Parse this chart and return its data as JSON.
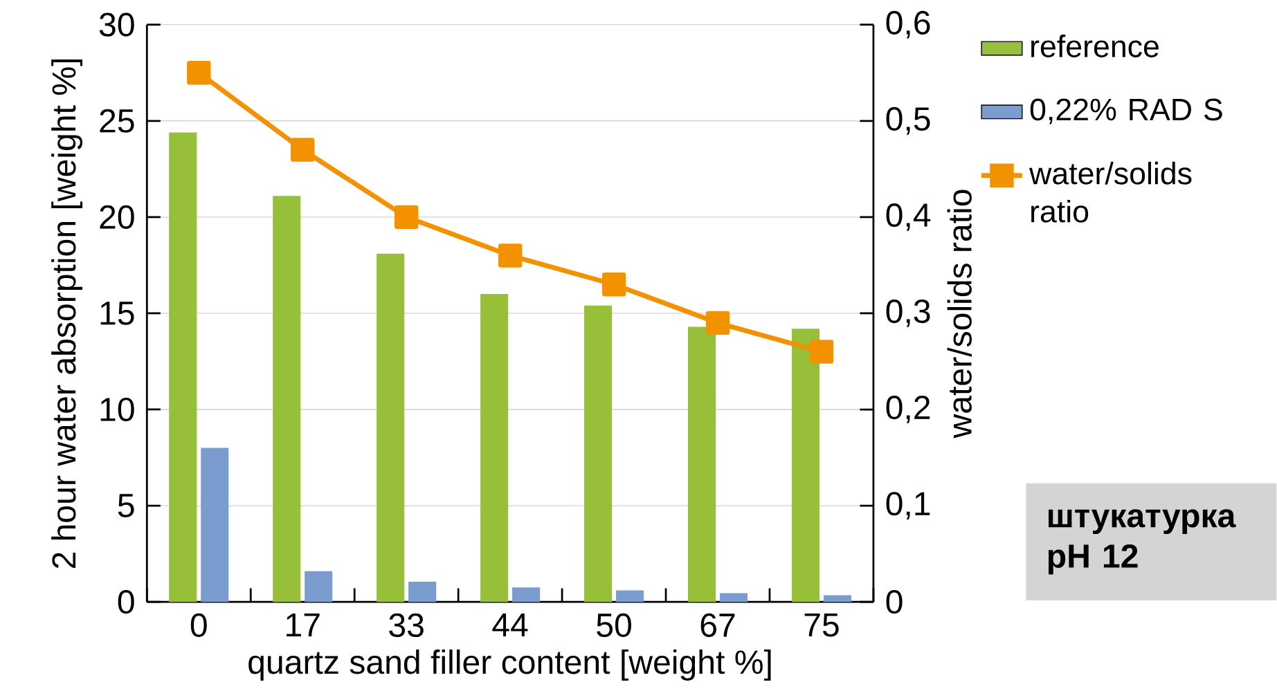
{
  "chart_data": {
    "type": "bar",
    "xlabel": "quartz sand filler content [weight %]",
    "ylabel": "2 hour water absorption [weight %]",
    "y2label": "water/solids ratio",
    "categories": [
      "0",
      "17",
      "33",
      "44",
      "50",
      "67",
      "75"
    ],
    "series": [
      {
        "name": "reference",
        "color": "#97bf3a",
        "values": [
          24.4,
          21.1,
          18.1,
          16.0,
          15.4,
          14.3,
          14.2
        ]
      },
      {
        "name": "0,22% RAD S",
        "color": "#7b9ccf",
        "values": [
          8.0,
          1.6,
          1.05,
          0.75,
          0.6,
          0.45,
          0.35
        ]
      },
      {
        "name": "water/solids ratio",
        "type": "line",
        "axis": "y2",
        "color": "#f39200",
        "marker": "square",
        "values": [
          0.55,
          0.47,
          0.4,
          0.36,
          0.33,
          0.29,
          0.26
        ]
      }
    ],
    "ylim": [
      0,
      30
    ],
    "yticks": [
      0,
      5,
      10,
      15,
      20,
      25,
      30
    ],
    "y2lim": [
      0,
      0.6
    ],
    "y2ticks": [
      {
        "value": 0,
        "label": "0"
      },
      {
        "value": 0.1,
        "label": "0,1"
      },
      {
        "value": 0.2,
        "label": "0,2"
      },
      {
        "value": 0.3,
        "label": "0,3"
      },
      {
        "value": 0.4,
        "label": "0,4"
      },
      {
        "value": 0.5,
        "label": "0,5"
      },
      {
        "value": 0.6,
        "label": "0,6"
      }
    ],
    "grid": "y",
    "legend": "right",
    "annotations": [
      "штукатурка pH 12"
    ]
  }
}
